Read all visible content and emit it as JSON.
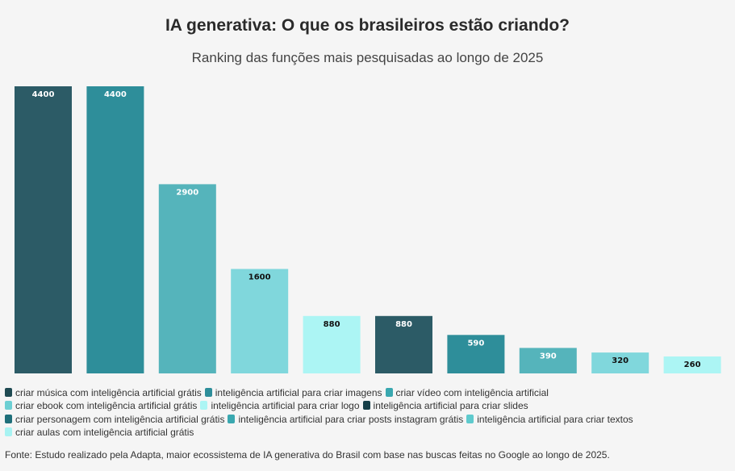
{
  "chart_data": {
    "type": "bar",
    "title": "IA generativa: O que os brasileiros estão criando?",
    "subtitle": "Ranking das funções mais pesquisadas ao longo de 2025",
    "categories": [
      "criar música com inteligência artificial grátis",
      "inteligência artificial para criar imagens",
      "criar vídeo com inteligência artificial",
      "criar ebook com inteligência artificial grátis",
      "inteligência artificial para criar logo",
      "inteligência artificial para criar slides",
      "criar personagem com inteligência artificial grátis",
      "inteligência artificial para criar posts instagram grátis",
      "inteligência artificial para criar textos",
      "criar aulas com inteligência artificial grátis"
    ],
    "values": [
      4400,
      4400,
      2900,
      1600,
      880,
      880,
      590,
      390,
      320,
      260
    ],
    "colors": [
      "#2c5b66",
      "#2e8e9a",
      "#55b4bb",
      "#80d7dc",
      "#acf5f4",
      "#2c5b66",
      "#2e8e9a",
      "#55b4bb",
      "#80d7dc",
      "#acf5f4"
    ],
    "legend_colors": [
      "#1f4a52",
      "#2e8e9a",
      "#3aa8b0",
      "#6ccfd3",
      "#acf5f4",
      "#163f48",
      "#1f6f7a",
      "#3aa8b0",
      "#5fcacd",
      "#a8f3f2"
    ],
    "label_colors": [
      "#ffffff",
      "#ffffff",
      "#ffffff",
      "#111111",
      "#111111",
      "#ffffff",
      "#ffffff",
      "#ffffff",
      "#111111",
      "#111111"
    ],
    "ylim": [
      0,
      4400
    ],
    "xlabel": "",
    "ylabel": "",
    "grid": false,
    "legend_position": "bottom"
  },
  "footer": "Fonte: Estudo realizado pela Adapta, maior ecossistema de IA generativa do Brasil com base nas buscas feitas no Google ao longo de 2025."
}
